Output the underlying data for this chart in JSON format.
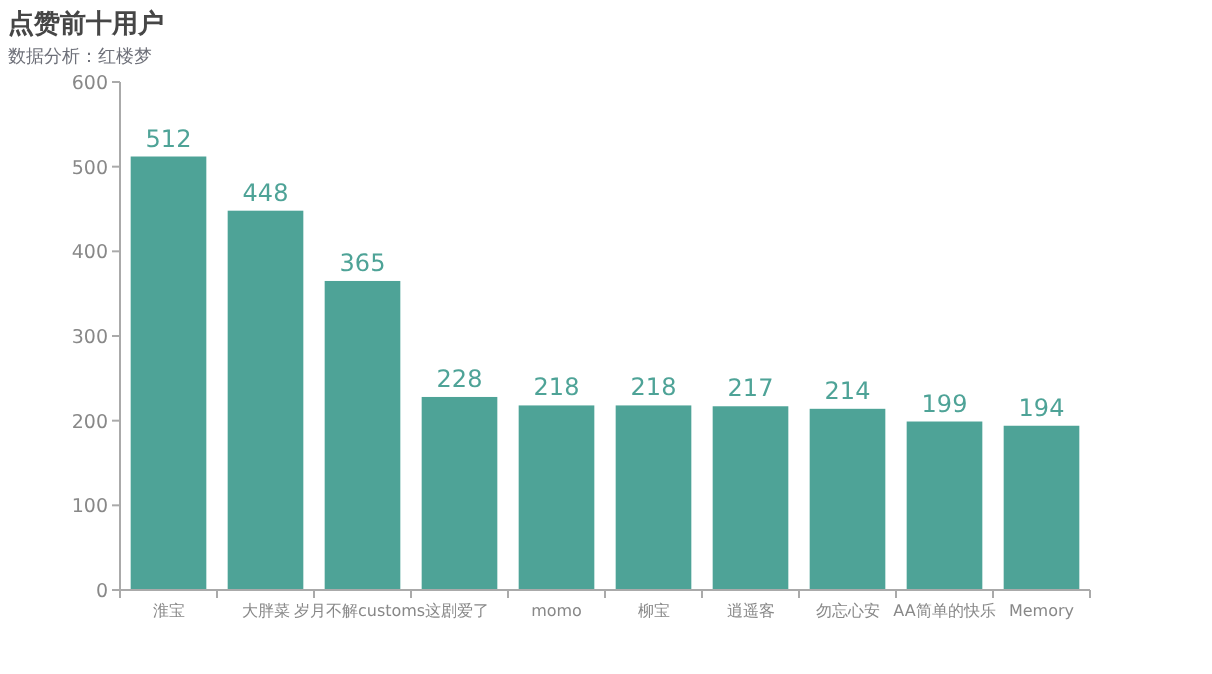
{
  "chart_data": {
    "type": "bar",
    "title": "点赞前十用户",
    "subtitle": "数据分析：红楼梦",
    "categories": [
      "淮宝",
      "大胖菜",
      "岁月不解customs这剧爱了",
      null,
      "momo",
      "柳宝",
      "逍遥客",
      "勿忘心安",
      "AA简单的快乐",
      "Memory"
    ],
    "values": [
      512,
      448,
      365,
      228,
      218,
      218,
      217,
      214,
      199,
      194
    ],
    "color": "#4ea397",
    "ylim": [
      0,
      600
    ],
    "yticks": [
      0,
      100,
      200,
      300,
      400,
      500,
      600
    ],
    "data_labels": true,
    "grid": false
  }
}
